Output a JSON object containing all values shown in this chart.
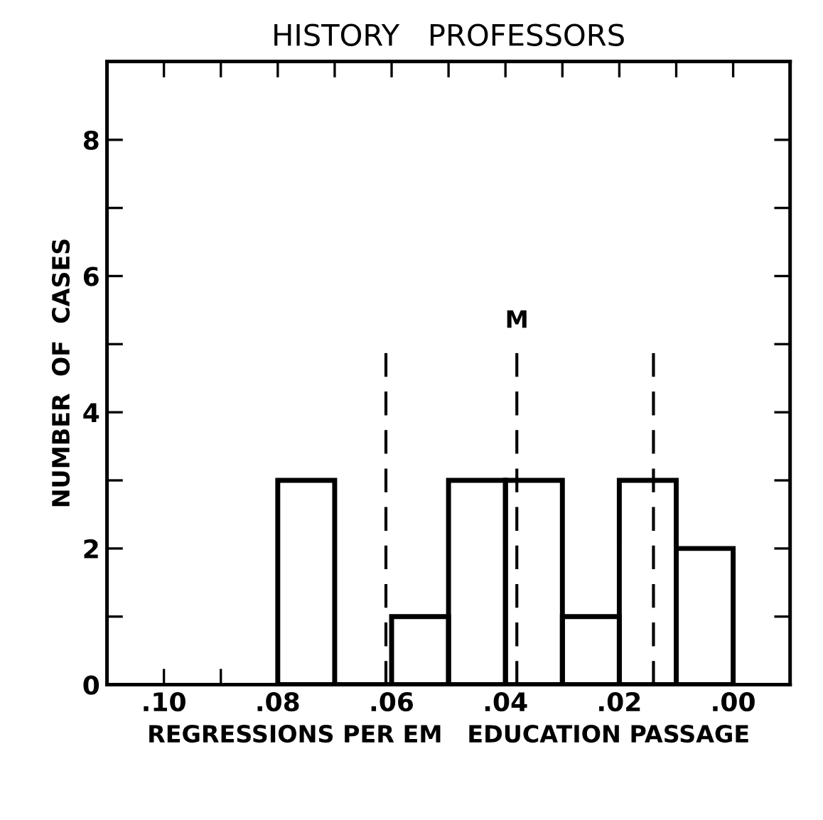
{
  "chart_data": {
    "type": "histogram",
    "title": "HISTORY   PROFESSORS",
    "xlabel": "REGRESSIONS PER EM   EDUCATION PASSAGE",
    "ylabel": "NUMBER  OF  CASES",
    "bins": [
      0.0,
      0.01,
      0.02,
      0.03,
      0.04,
      0.05,
      0.06,
      0.07,
      0.08
    ],
    "values": [
      2,
      3,
      1,
      3,
      3,
      1,
      0,
      3
    ],
    "color": "#000000",
    "xlim": [
      0.11,
      -0.01
    ],
    "xticks": [
      {
        "value": 0.1,
        "label": ".10"
      },
      {
        "value": 0.09,
        "label": null
      },
      {
        "value": 0.08,
        "label": ".08"
      },
      {
        "value": 0.07,
        "label": null
      },
      {
        "value": 0.06,
        "label": ".06"
      },
      {
        "value": 0.05,
        "label": null
      },
      {
        "value": 0.04,
        "label": ".04"
      },
      {
        "value": 0.03,
        "label": null
      },
      {
        "value": 0.02,
        "label": ".02"
      },
      {
        "value": 0.01,
        "label": null
      },
      {
        "value": 0.0,
        "label": ".00"
      }
    ],
    "ylim": [
      0,
      9.15
    ],
    "yticks": [
      0,
      {
        "value": 1,
        "label": null
      },
      2,
      {
        "value": 3,
        "label": null
      },
      4,
      {
        "value": 5,
        "label": null
      },
      6,
      {
        "value": 7,
        "label": null
      },
      8
    ],
    "ref_lines": [
      {
        "axis": "x",
        "value": 0.061,
        "label": null,
        "color": "#000000",
        "line_style": "dashed"
      },
      {
        "axis": "x",
        "value": 0.038,
        "label": "M",
        "color": "#000000",
        "line_style": "dashed"
      },
      {
        "axis": "x",
        "value": 0.014,
        "label": null,
        "color": "#000000",
        "line_style": "dashed"
      }
    ],
    "grid": false
  }
}
